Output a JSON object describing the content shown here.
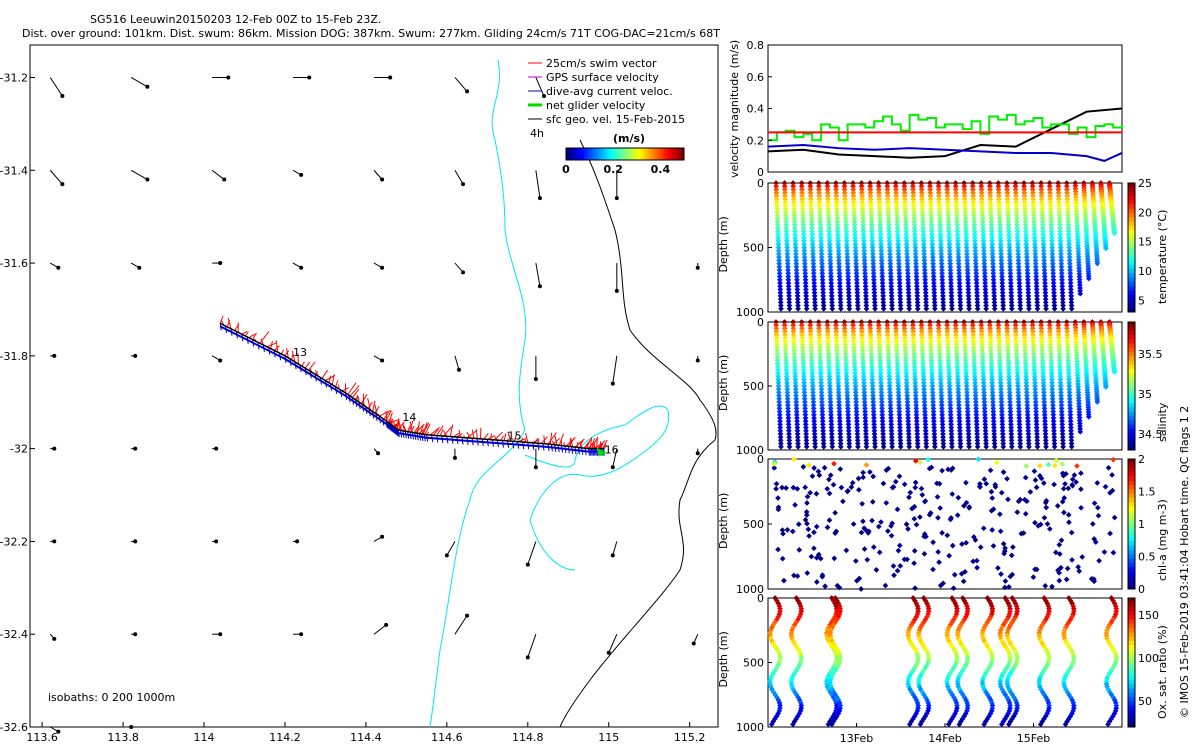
{
  "header": {
    "line1": "SG516 Leeuwin20150203 12-Feb 00Z to 15-Feb 23Z.",
    "line2": "Dist. over ground: 101km. Dist. swum: 86km. Mission DOG: 387km. Swum: 277km. Gliding 24cm/s 71T COG-DAC=21cm/s 68T"
  },
  "watermark": "© IMOS 15-Feb-2019 03:41:04 Hobart time. QC flags 1 2",
  "colors": {
    "swim": "#ff0000",
    "dac": "#0000cc",
    "net": "#00dd00",
    "sfc": "#000000",
    "coast": "#00e5ff",
    "isobath": "#000000"
  },
  "chart_data": [
    {
      "type": "map",
      "name": "track map",
      "xticks": [
        "113.6",
        "113.8",
        "114",
        "114.2",
        "114.4",
        "114.6",
        "114.8",
        "115",
        "115.2"
      ],
      "yticks": [
        "-31.2",
        "-31.4",
        "-31.6",
        "-31.8",
        "-32",
        "-32.2",
        "-32.4",
        "-32.6"
      ],
      "xlim": [
        113.57,
        115.27
      ],
      "ylim": [
        -32.6,
        -31.13
      ],
      "legend": [
        "25cm/s swim vector",
        "GPS surface velocity",
        "dive-avg current veloc.",
        "net glider velocity",
        "sfc geo. vel. 15-Feb-2015"
      ],
      "legend_note": "4h",
      "colorbar": {
        "label": "(m/s)",
        "ticks": [
          "0",
          "0.2",
          "0.4"
        ],
        "range": [
          0,
          0.5
        ]
      },
      "day_labels": [
        "13",
        "14",
        "15",
        "16"
      ],
      "isobath_note": "isobaths: 0   200  1000m",
      "track": [
        [
          114.04,
          -31.73
        ],
        [
          114.2,
          -31.8
        ],
        [
          114.35,
          -31.88
        ],
        [
          114.45,
          -31.94
        ],
        [
          114.48,
          -31.96
        ],
        [
          114.55,
          -31.97
        ],
        [
          114.7,
          -31.98
        ],
        [
          114.85,
          -31.99
        ],
        [
          114.95,
          -32.0
        ],
        [
          114.99,
          -32.0
        ]
      ],
      "day_marks": [
        [
          114.22,
          -31.8
        ],
        [
          114.49,
          -31.94
        ],
        [
          114.75,
          -31.98
        ],
        [
          114.99,
          -32.01
        ]
      ],
      "vectors": [
        [
          113.62,
          -31.2,
          0.03,
          -0.04
        ],
        [
          113.82,
          -31.2,
          0.04,
          -0.02
        ],
        [
          114.02,
          -31.2,
          0.04,
          0.0
        ],
        [
          114.22,
          -31.2,
          0.04,
          0.0
        ],
        [
          114.42,
          -31.2,
          0.04,
          0.0
        ],
        [
          114.62,
          -31.2,
          0.03,
          -0.03
        ],
        [
          114.82,
          -31.2,
          0.02,
          -0.04
        ],
        [
          113.62,
          -31.4,
          0.03,
          -0.03
        ],
        [
          113.82,
          -31.4,
          0.04,
          -0.02
        ],
        [
          114.02,
          -31.4,
          0.03,
          -0.02
        ],
        [
          114.22,
          -31.4,
          0.02,
          -0.01
        ],
        [
          114.42,
          -31.4,
          0.02,
          -0.02
        ],
        [
          114.62,
          -31.4,
          0.02,
          -0.03
        ],
        [
          114.82,
          -31.4,
          0.01,
          -0.06
        ],
        [
          115.02,
          -31.4,
          0.0,
          -0.06
        ],
        [
          113.62,
          -31.6,
          0.02,
          -0.01
        ],
        [
          113.82,
          -31.6,
          0.02,
          -0.01
        ],
        [
          114.02,
          -31.6,
          0.02,
          0.0
        ],
        [
          114.22,
          -31.6,
          0.02,
          -0.01
        ],
        [
          114.42,
          -31.6,
          0.02,
          -0.01
        ],
        [
          114.62,
          -31.6,
          0.02,
          -0.02
        ],
        [
          114.82,
          -31.6,
          0.01,
          -0.05
        ],
        [
          115.02,
          -31.6,
          0.0,
          -0.06
        ],
        [
          115.22,
          -31.6,
          0.0,
          -0.01
        ],
        [
          113.62,
          -31.8,
          0.01,
          0.0
        ],
        [
          113.82,
          -31.8,
          0.01,
          0.0
        ],
        [
          114.02,
          -31.8,
          0.02,
          -0.01
        ],
        [
          114.42,
          -31.8,
          0.02,
          -0.01
        ],
        [
          114.62,
          -31.8,
          0.01,
          -0.03
        ],
        [
          114.82,
          -31.8,
          0.0,
          -0.05
        ],
        [
          115.02,
          -31.8,
          -0.01,
          -0.06
        ],
        [
          115.22,
          -31.8,
          0.0,
          -0.01
        ],
        [
          113.62,
          -32.0,
          0.01,
          0.0
        ],
        [
          113.82,
          -32.0,
          0.01,
          0.0
        ],
        [
          114.02,
          -32.0,
          0.01,
          0.0
        ],
        [
          114.42,
          -32.0,
          0.01,
          -0.01
        ],
        [
          114.62,
          -32.0,
          0.0,
          -0.02
        ],
        [
          114.82,
          -32.0,
          0.0,
          -0.04
        ],
        [
          115.02,
          -32.0,
          -0.01,
          -0.04
        ],
        [
          115.22,
          -32.0,
          0.0,
          -0.01
        ],
        [
          113.62,
          -32.2,
          0.01,
          0.0
        ],
        [
          113.82,
          -32.2,
          0.01,
          0.0
        ],
        [
          114.02,
          -32.2,
          0.01,
          0.0
        ],
        [
          114.22,
          -32.2,
          0.01,
          0.0
        ],
        [
          114.42,
          -32.2,
          0.02,
          0.01
        ],
        [
          114.62,
          -32.2,
          -0.02,
          -0.03
        ],
        [
          114.82,
          -32.2,
          -0.02,
          -0.05
        ],
        [
          115.02,
          -32.2,
          -0.01,
          -0.03
        ],
        [
          113.62,
          -32.4,
          0.01,
          -0.01
        ],
        [
          113.82,
          -32.4,
          0.01,
          0.0
        ],
        [
          114.02,
          -32.4,
          0.02,
          0.0
        ],
        [
          114.22,
          -32.4,
          0.02,
          0.0
        ],
        [
          114.42,
          -32.4,
          0.03,
          0.02
        ],
        [
          114.62,
          -32.4,
          0.03,
          0.04
        ],
        [
          114.82,
          -32.4,
          -0.02,
          -0.05
        ],
        [
          115.02,
          -32.4,
          -0.02,
          -0.04
        ],
        [
          115.22,
          -32.4,
          -0.01,
          -0.02
        ],
        [
          113.62,
          -32.6,
          0.02,
          -0.01
        ],
        [
          113.82,
          -32.6,
          0.0,
          0.0
        ]
      ]
    },
    {
      "type": "line",
      "name": "velocity",
      "ylabel": "velocity magnitude (m/s)",
      "ylim": [
        0,
        0.8
      ],
      "yticks": [
        "0",
        "0.2",
        "0.4",
        "0.6",
        "0.8"
      ],
      "x_days": [
        12,
        16
      ],
      "series": [
        {
          "name": "black",
          "x": [
            12.0,
            12.4,
            12.8,
            13.2,
            13.6,
            14.0,
            14.4,
            14.8,
            15.2,
            15.6,
            16.0
          ],
          "values": [
            0.13,
            0.14,
            0.11,
            0.1,
            0.09,
            0.1,
            0.17,
            0.16,
            0.27,
            0.38,
            0.4
          ]
        },
        {
          "name": "blue",
          "x": [
            12.0,
            12.4,
            12.8,
            13.2,
            13.6,
            14.0,
            14.4,
            14.8,
            15.2,
            15.6,
            15.8,
            16.0
          ],
          "values": [
            0.16,
            0.17,
            0.15,
            0.14,
            0.15,
            0.14,
            0.13,
            0.12,
            0.12,
            0.1,
            0.07,
            0.12
          ]
        },
        {
          "name": "green",
          "x": [
            12.0,
            12.1,
            12.2,
            12.3,
            12.4,
            12.5,
            12.6,
            12.7,
            12.8,
            12.9,
            13.0,
            13.1,
            13.2,
            13.3,
            13.4,
            13.5,
            13.6,
            13.7,
            13.8,
            13.9,
            14.0,
            14.1,
            14.2,
            14.3,
            14.4,
            14.5,
            14.6,
            14.7,
            14.8,
            14.9,
            15.0,
            15.1,
            15.2,
            15.3,
            15.4,
            15.5,
            15.6,
            15.7,
            15.8,
            15.9,
            16.0
          ],
          "values": [
            0.2,
            0.25,
            0.26,
            0.22,
            0.24,
            0.2,
            0.3,
            0.28,
            0.2,
            0.3,
            0.3,
            0.28,
            0.32,
            0.35,
            0.3,
            0.26,
            0.36,
            0.33,
            0.34,
            0.28,
            0.3,
            0.3,
            0.27,
            0.32,
            0.24,
            0.35,
            0.33,
            0.36,
            0.3,
            0.32,
            0.34,
            0.28,
            0.3,
            0.3,
            0.24,
            0.28,
            0.22,
            0.29,
            0.3,
            0.28,
            0.3
          ]
        },
        {
          "name": "red",
          "x": [
            12.0,
            16.0
          ],
          "values": [
            0.25,
            0.25
          ]
        }
      ]
    },
    {
      "type": "scatter",
      "name": "temperature",
      "colorbar_label": "temperature (°C)",
      "colorbar_ticks": [
        "25",
        "20",
        "15",
        "10",
        "5"
      ],
      "crange": [
        3,
        25
      ],
      "ylim": [
        0,
        1000
      ],
      "yticks": [
        "0",
        "500",
        "1000"
      ],
      "ylabel": "Depth (m)",
      "profiles": 40,
      "maxdepth": 1000,
      "fulldepth": 1000
    },
    {
      "type": "scatter",
      "name": "salinity",
      "colorbar_label": "salinity",
      "colorbar_ticks": [
        "35.5",
        "35",
        "34.5"
      ],
      "crange": [
        34.3,
        35.9
      ],
      "ylim": [
        0,
        1000
      ],
      "yticks": [
        "0",
        "500",
        "1000"
      ],
      "ylabel": "Depth (m)",
      "profiles": 40,
      "maxdepth": 1000,
      "fulldepth": 1000
    },
    {
      "type": "scatter",
      "name": "chl-a",
      "colorbar_label": "chl-a (mg m-3)",
      "colorbar_ticks": [
        "2",
        "1.5",
        "1",
        "0.5",
        "0"
      ],
      "crange": [
        0,
        2
      ],
      "ylim": [
        0,
        1000
      ],
      "yticks": [
        "0",
        "500",
        "1000"
      ],
      "ylabel": "Depth (m)",
      "profiles": 40,
      "maxdepth": 1000,
      "fulldepth": 1000
    },
    {
      "type": "scatter",
      "name": "oxygen",
      "colorbar_label": "Ox. sat. ratio (%)",
      "colorbar_ticks": [
        "150",
        "100",
        "50"
      ],
      "crange": [
        20,
        170
      ],
      "ylim": [
        0,
        1000
      ],
      "yticks": [
        "0",
        "500",
        "1000"
      ],
      "ylabel": "Depth (m)",
      "xticks": [
        "13Feb",
        "14Feb",
        "15Feb"
      ],
      "profiles": 14,
      "maxdepth": 1000,
      "fulldepth": 1000
    }
  ]
}
